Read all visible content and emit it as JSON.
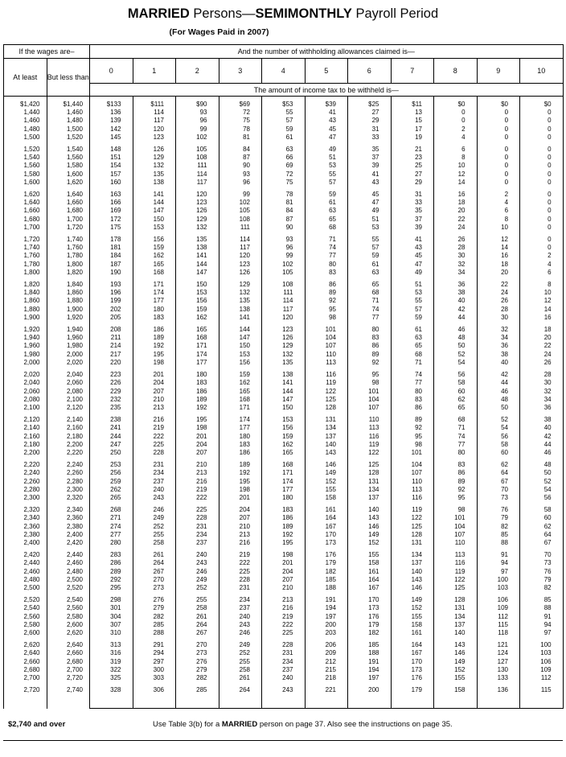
{
  "title": {
    "married": "MARRIED",
    "persons": " Persons—",
    "semimonthly": "SEMIMONTHLY",
    "payroll": " Payroll Period",
    "subtitle": "(For Wages Paid in 2007)"
  },
  "table": {
    "wages_header": "If the wages are–",
    "allowances_header": "And the number of withholding allowances claimed is—",
    "at_least": "At least",
    "but_less_than": "But less than",
    "allowance_columns": [
      "0",
      "1",
      "2",
      "3",
      "4",
      "5",
      "6",
      "7",
      "8",
      "9",
      "10"
    ],
    "amount_header": "The amount of income tax to be withheld is—",
    "groups": [
      [
        [
          "$1,420",
          "$1,440",
          "$133",
          "$111",
          "$90",
          "$69",
          "$53",
          "$39",
          "$25",
          "$11",
          "$0",
          "$0",
          "$0"
        ],
        [
          "1,440",
          "1,460",
          "136",
          "114",
          "93",
          "72",
          "55",
          "41",
          "27",
          "13",
          "0",
          "0",
          "0"
        ],
        [
          "1,460",
          "1,480",
          "139",
          "117",
          "96",
          "75",
          "57",
          "43",
          "29",
          "15",
          "0",
          "0",
          "0"
        ],
        [
          "1,480",
          "1,500",
          "142",
          "120",
          "99",
          "78",
          "59",
          "45",
          "31",
          "17",
          "2",
          "0",
          "0"
        ],
        [
          "1,500",
          "1,520",
          "145",
          "123",
          "102",
          "81",
          "61",
          "47",
          "33",
          "19",
          "4",
          "0",
          "0"
        ]
      ],
      [
        [
          "1,520",
          "1,540",
          "148",
          "126",
          "105",
          "84",
          "63",
          "49",
          "35",
          "21",
          "6",
          "0",
          "0"
        ],
        [
          "1,540",
          "1,560",
          "151",
          "129",
          "108",
          "87",
          "66",
          "51",
          "37",
          "23",
          "8",
          "0",
          "0"
        ],
        [
          "1,560",
          "1,580",
          "154",
          "132",
          "111",
          "90",
          "69",
          "53",
          "39",
          "25",
          "10",
          "0",
          "0"
        ],
        [
          "1,580",
          "1,600",
          "157",
          "135",
          "114",
          "93",
          "72",
          "55",
          "41",
          "27",
          "12",
          "0",
          "0"
        ],
        [
          "1,600",
          "1,620",
          "160",
          "138",
          "117",
          "96",
          "75",
          "57",
          "43",
          "29",
          "14",
          "0",
          "0"
        ]
      ],
      [
        [
          "1,620",
          "1,640",
          "163",
          "141",
          "120",
          "99",
          "78",
          "59",
          "45",
          "31",
          "16",
          "2",
          "0"
        ],
        [
          "1,640",
          "1,660",
          "166",
          "144",
          "123",
          "102",
          "81",
          "61",
          "47",
          "33",
          "18",
          "4",
          "0"
        ],
        [
          "1,660",
          "1,680",
          "169",
          "147",
          "126",
          "105",
          "84",
          "63",
          "49",
          "35",
          "20",
          "6",
          "0"
        ],
        [
          "1,680",
          "1,700",
          "172",
          "150",
          "129",
          "108",
          "87",
          "65",
          "51",
          "37",
          "22",
          "8",
          "0"
        ],
        [
          "1,700",
          "1,720",
          "175",
          "153",
          "132",
          "111",
          "90",
          "68",
          "53",
          "39",
          "24",
          "10",
          "0"
        ]
      ],
      [
        [
          "1,720",
          "1,740",
          "178",
          "156",
          "135",
          "114",
          "93",
          "71",
          "55",
          "41",
          "26",
          "12",
          "0"
        ],
        [
          "1,740",
          "1,760",
          "181",
          "159",
          "138",
          "117",
          "96",
          "74",
          "57",
          "43",
          "28",
          "14",
          "0"
        ],
        [
          "1,760",
          "1,780",
          "184",
          "162",
          "141",
          "120",
          "99",
          "77",
          "59",
          "45",
          "30",
          "16",
          "2"
        ],
        [
          "1,780",
          "1,800",
          "187",
          "165",
          "144",
          "123",
          "102",
          "80",
          "61",
          "47",
          "32",
          "18",
          "4"
        ],
        [
          "1,800",
          "1,820",
          "190",
          "168",
          "147",
          "126",
          "105",
          "83",
          "63",
          "49",
          "34",
          "20",
          "6"
        ]
      ],
      [
        [
          "1,820",
          "1,840",
          "193",
          "171",
          "150",
          "129",
          "108",
          "86",
          "65",
          "51",
          "36",
          "22",
          "8"
        ],
        [
          "1,840",
          "1,860",
          "196",
          "174",
          "153",
          "132",
          "111",
          "89",
          "68",
          "53",
          "38",
          "24",
          "10"
        ],
        [
          "1,860",
          "1,880",
          "199",
          "177",
          "156",
          "135",
          "114",
          "92",
          "71",
          "55",
          "40",
          "26",
          "12"
        ],
        [
          "1,880",
          "1,900",
          "202",
          "180",
          "159",
          "138",
          "117",
          "95",
          "74",
          "57",
          "42",
          "28",
          "14"
        ],
        [
          "1,900",
          "1,920",
          "205",
          "183",
          "162",
          "141",
          "120",
          "98",
          "77",
          "59",
          "44",
          "30",
          "16"
        ]
      ],
      [
        [
          "1,920",
          "1,940",
          "208",
          "186",
          "165",
          "144",
          "123",
          "101",
          "80",
          "61",
          "46",
          "32",
          "18"
        ],
        [
          "1,940",
          "1,960",
          "211",
          "189",
          "168",
          "147",
          "126",
          "104",
          "83",
          "63",
          "48",
          "34",
          "20"
        ],
        [
          "1,960",
          "1,980",
          "214",
          "192",
          "171",
          "150",
          "129",
          "107",
          "86",
          "65",
          "50",
          "36",
          "22"
        ],
        [
          "1,980",
          "2,000",
          "217",
          "195",
          "174",
          "153",
          "132",
          "110",
          "89",
          "68",
          "52",
          "38",
          "24"
        ],
        [
          "2,000",
          "2,020",
          "220",
          "198",
          "177",
          "156",
          "135",
          "113",
          "92",
          "71",
          "54",
          "40",
          "26"
        ]
      ],
      [
        [
          "2,020",
          "2,040",
          "223",
          "201",
          "180",
          "159",
          "138",
          "116",
          "95",
          "74",
          "56",
          "42",
          "28"
        ],
        [
          "2,040",
          "2,060",
          "226",
          "204",
          "183",
          "162",
          "141",
          "119",
          "98",
          "77",
          "58",
          "44",
          "30"
        ],
        [
          "2,060",
          "2,080",
          "229",
          "207",
          "186",
          "165",
          "144",
          "122",
          "101",
          "80",
          "60",
          "46",
          "32"
        ],
        [
          "2,080",
          "2,100",
          "232",
          "210",
          "189",
          "168",
          "147",
          "125",
          "104",
          "83",
          "62",
          "48",
          "34"
        ],
        [
          "2,100",
          "2,120",
          "235",
          "213",
          "192",
          "171",
          "150",
          "128",
          "107",
          "86",
          "65",
          "50",
          "36"
        ]
      ],
      [
        [
          "2,120",
          "2,140",
          "238",
          "216",
          "195",
          "174",
          "153",
          "131",
          "110",
          "89",
          "68",
          "52",
          "38"
        ],
        [
          "2,140",
          "2,160",
          "241",
          "219",
          "198",
          "177",
          "156",
          "134",
          "113",
          "92",
          "71",
          "54",
          "40"
        ],
        [
          "2,160",
          "2,180",
          "244",
          "222",
          "201",
          "180",
          "159",
          "137",
          "116",
          "95",
          "74",
          "56",
          "42"
        ],
        [
          "2,180",
          "2,200",
          "247",
          "225",
          "204",
          "183",
          "162",
          "140",
          "119",
          "98",
          "77",
          "58",
          "44"
        ],
        [
          "2,200",
          "2,220",
          "250",
          "228",
          "207",
          "186",
          "165",
          "143",
          "122",
          "101",
          "80",
          "60",
          "46"
        ]
      ],
      [
        [
          "2,220",
          "2,240",
          "253",
          "231",
          "210",
          "189",
          "168",
          "146",
          "125",
          "104",
          "83",
          "62",
          "48"
        ],
        [
          "2,240",
          "2,260",
          "256",
          "234",
          "213",
          "192",
          "171",
          "149",
          "128",
          "107",
          "86",
          "64",
          "50"
        ],
        [
          "2,260",
          "2,280",
          "259",
          "237",
          "216",
          "195",
          "174",
          "152",
          "131",
          "110",
          "89",
          "67",
          "52"
        ],
        [
          "2,280",
          "2,300",
          "262",
          "240",
          "219",
          "198",
          "177",
          "155",
          "134",
          "113",
          "92",
          "70",
          "54"
        ],
        [
          "2,300",
          "2,320",
          "265",
          "243",
          "222",
          "201",
          "180",
          "158",
          "137",
          "116",
          "95",
          "73",
          "56"
        ]
      ],
      [
        [
          "2,320",
          "2,340",
          "268",
          "246",
          "225",
          "204",
          "183",
          "161",
          "140",
          "119",
          "98",
          "76",
          "58"
        ],
        [
          "2,340",
          "2,360",
          "271",
          "249",
          "228",
          "207",
          "186",
          "164",
          "143",
          "122",
          "101",
          "79",
          "60"
        ],
        [
          "2,360",
          "2,380",
          "274",
          "252",
          "231",
          "210",
          "189",
          "167",
          "146",
          "125",
          "104",
          "82",
          "62"
        ],
        [
          "2,380",
          "2,400",
          "277",
          "255",
          "234",
          "213",
          "192",
          "170",
          "149",
          "128",
          "107",
          "85",
          "64"
        ],
        [
          "2,400",
          "2,420",
          "280",
          "258",
          "237",
          "216",
          "195",
          "173",
          "152",
          "131",
          "110",
          "88",
          "67"
        ]
      ],
      [
        [
          "2,420",
          "2,440",
          "283",
          "261",
          "240",
          "219",
          "198",
          "176",
          "155",
          "134",
          "113",
          "91",
          "70"
        ],
        [
          "2,440",
          "2,460",
          "286",
          "264",
          "243",
          "222",
          "201",
          "179",
          "158",
          "137",
          "116",
          "94",
          "73"
        ],
        [
          "2,460",
          "2,480",
          "289",
          "267",
          "246",
          "225",
          "204",
          "182",
          "161",
          "140",
          "119",
          "97",
          "76"
        ],
        [
          "2,480",
          "2,500",
          "292",
          "270",
          "249",
          "228",
          "207",
          "185",
          "164",
          "143",
          "122",
          "100",
          "79"
        ],
        [
          "2,500",
          "2,520",
          "295",
          "273",
          "252",
          "231",
          "210",
          "188",
          "167",
          "146",
          "125",
          "103",
          "82"
        ]
      ],
      [
        [
          "2,520",
          "2,540",
          "298",
          "276",
          "255",
          "234",
          "213",
          "191",
          "170",
          "149",
          "128",
          "106",
          "85"
        ],
        [
          "2,540",
          "2,560",
          "301",
          "279",
          "258",
          "237",
          "216",
          "194",
          "173",
          "152",
          "131",
          "109",
          "88"
        ],
        [
          "2,560",
          "2,580",
          "304",
          "282",
          "261",
          "240",
          "219",
          "197",
          "176",
          "155",
          "134",
          "112",
          "91"
        ],
        [
          "2,580",
          "2,600",
          "307",
          "285",
          "264",
          "243",
          "222",
          "200",
          "179",
          "158",
          "137",
          "115",
          "94"
        ],
        [
          "2,600",
          "2,620",
          "310",
          "288",
          "267",
          "246",
          "225",
          "203",
          "182",
          "161",
          "140",
          "118",
          "97"
        ]
      ],
      [
        [
          "2,620",
          "2,640",
          "313",
          "291",
          "270",
          "249",
          "228",
          "206",
          "185",
          "164",
          "143",
          "121",
          "100"
        ],
        [
          "2,640",
          "2,660",
          "316",
          "294",
          "273",
          "252",
          "231",
          "209",
          "188",
          "167",
          "146",
          "124",
          "103"
        ],
        [
          "2,660",
          "2,680",
          "319",
          "297",
          "276",
          "255",
          "234",
          "212",
          "191",
          "170",
          "149",
          "127",
          "106"
        ],
        [
          "2,680",
          "2,700",
          "322",
          "300",
          "279",
          "258",
          "237",
          "215",
          "194",
          "173",
          "152",
          "130",
          "109"
        ],
        [
          "2,700",
          "2,720",
          "325",
          "303",
          "282",
          "261",
          "240",
          "218",
          "197",
          "176",
          "155",
          "133",
          "112"
        ]
      ],
      [
        [
          "2,720",
          "2,740",
          "328",
          "306",
          "285",
          "264",
          "243",
          "221",
          "200",
          "179",
          "158",
          "136",
          "115"
        ]
      ]
    ]
  },
  "footer": {
    "range": "$2,740 and over",
    "note_pre": "Use Table 3(b) for a ",
    "note_bold": "MARRIED",
    "note_post": " person on page 37. Also see the instructions on page 35."
  }
}
